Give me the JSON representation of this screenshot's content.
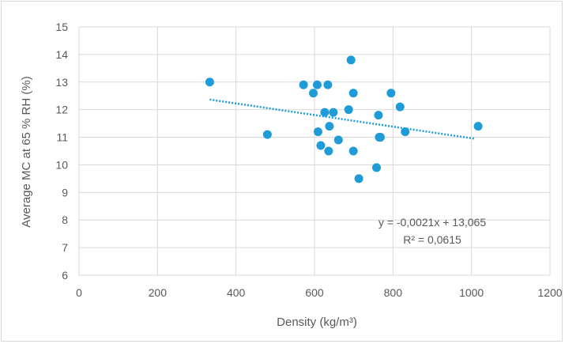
{
  "chart_data": {
    "type": "scatter",
    "title": "",
    "xlabel": "Density (kg/m³)",
    "ylabel": "Average MC at 65 % RH (%)",
    "xlim": [
      0,
      1200
    ],
    "ylim": [
      6,
      15
    ],
    "x_ticks": [
      "0",
      "200",
      "400",
      "600",
      "800",
      "1000",
      "1200"
    ],
    "y_ticks": [
      "6",
      "7",
      "8",
      "9",
      "10",
      "11",
      "12",
      "13",
      "14",
      "15"
    ],
    "grid": true,
    "legend": "none",
    "marker_color": "#1f9bd7",
    "trendline_color": "#1f9bd7",
    "series": [
      {
        "points": [
          {
            "x": 333,
            "y": 13.0
          },
          {
            "x": 480,
            "y": 11.1
          },
          {
            "x": 572,
            "y": 12.9
          },
          {
            "x": 597,
            "y": 12.6
          },
          {
            "x": 607,
            "y": 12.9
          },
          {
            "x": 609,
            "y": 11.2
          },
          {
            "x": 616,
            "y": 10.7
          },
          {
            "x": 626,
            "y": 11.9
          },
          {
            "x": 634,
            "y": 12.9
          },
          {
            "x": 636,
            "y": 10.5
          },
          {
            "x": 638,
            "y": 11.4
          },
          {
            "x": 648,
            "y": 11.9
          },
          {
            "x": 661,
            "y": 10.9
          },
          {
            "x": 687,
            "y": 12.0
          },
          {
            "x": 693,
            "y": 13.8
          },
          {
            "x": 699,
            "y": 12.6
          },
          {
            "x": 699,
            "y": 10.5
          },
          {
            "x": 713,
            "y": 9.5
          },
          {
            "x": 758,
            "y": 9.9
          },
          {
            "x": 763,
            "y": 11.8
          },
          {
            "x": 765,
            "y": 11.0
          },
          {
            "x": 768,
            "y": 11.0
          },
          {
            "x": 795,
            "y": 12.6
          },
          {
            "x": 818,
            "y": 12.1
          },
          {
            "x": 831,
            "y": 11.2
          },
          {
            "x": 1017,
            "y": 11.4
          }
        ]
      }
    ],
    "trendline": {
      "slope": -0.0021,
      "intercept": 13.065,
      "x_range": [
        333,
        1010
      ],
      "equation": "y = -0,0021x + 13,065",
      "r_squared_text": "R² = 0,0615"
    }
  }
}
